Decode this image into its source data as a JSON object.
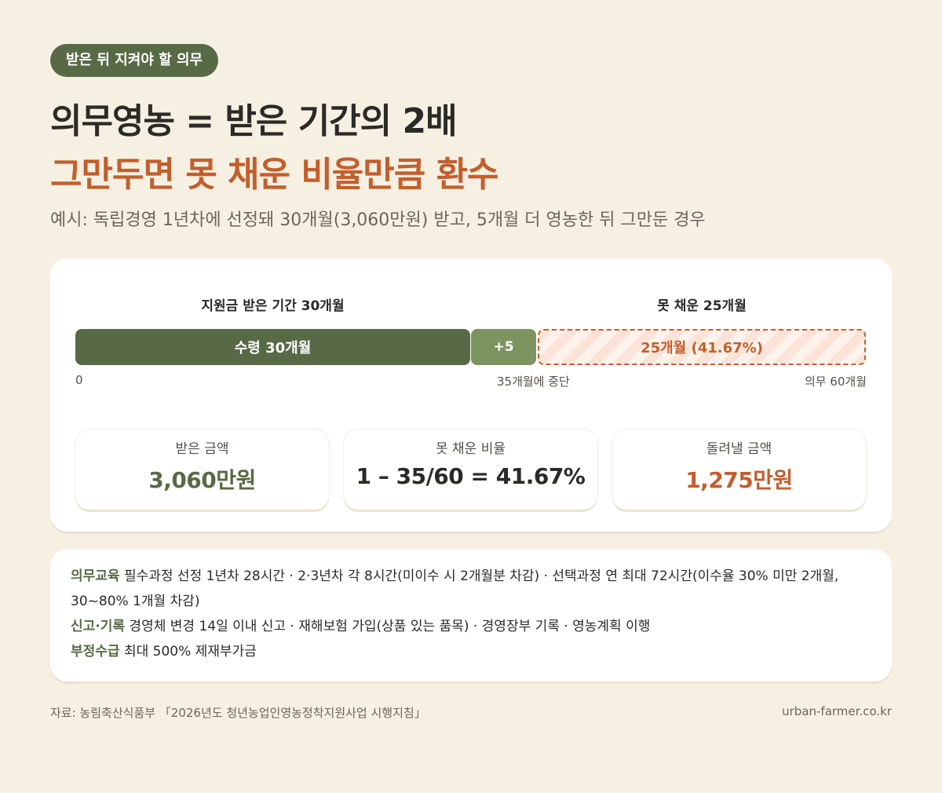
{
  "badge": "받은 뒤 지켜야 할 의무",
  "title_line1": "의무영농 = 받은 기간의 2배",
  "title_line2": "그만두면 못 채운 비율만큼 환수",
  "subtitle": "예시: 독립경영 1년차에 선정돼 30개월(3,060만원) 받고, 5개월 더 영농한 뒤 그만둔 경우",
  "timeline": {
    "label_received": "지원금 받은 기간 30개월",
    "label_unfilled": "못 채운 25개월",
    "bar_received": "수령 30개월",
    "bar_extra": "+5",
    "bar_unfilled": "25개월 (41.67%)",
    "tick_start": "0",
    "tick_stop": "35개월에 중단",
    "tick_end": "의무 60개월",
    "months_received": 30,
    "months_extra": 5,
    "months_required": 60
  },
  "stats": [
    {
      "label": "받은 금액",
      "value": "3,060만원"
    },
    {
      "label": "못 채운 비율",
      "value": "1 – 35/60 = 41.67%"
    },
    {
      "label": "돌려낼 금액",
      "value": "1,275만원"
    }
  ],
  "notes": [
    {
      "key": "의무교육",
      "text": " 필수과정 선정 1년차 28시간 · 2·3년차 각 8시간(미이수 시 2개월분 차감) · 선택과정 연 최대 72시간(이수율 30% 미만 2개월, 30~80% 1개월 차감)"
    },
    {
      "key": "신고·기록",
      "text": " 경영체 변경 14일 이내 신고 · 재해보험 가입(상품 있는 품목) · 경영장부 기록 · 영농계획 이행"
    },
    {
      "key": "부정수급",
      "text": " 최대 500% 제재부가금"
    }
  ],
  "footer": {
    "source": "자료: 농림축산식품부 「2026년도 청년농업인영농정착지원사업 시행지침」",
    "site": "urban-farmer.co.kr"
  },
  "colors": {
    "background": "#f6f0e3",
    "green": "#586a45",
    "green_light": "#7d9460",
    "orange": "#c35f2c"
  }
}
